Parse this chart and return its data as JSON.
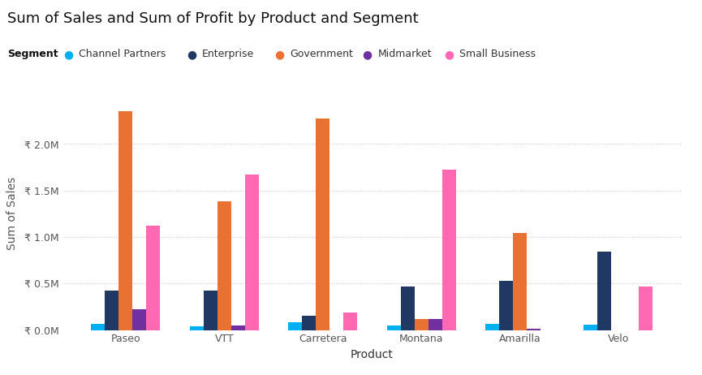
{
  "title": "Sum of Sales and Sum of Profit by Product and Segment",
  "xlabel": "Product",
  "ylabel": "Sum of Sales",
  "legend_title": "Segment",
  "categories": [
    "Paseo",
    "VTT",
    "Carretera",
    "Montana",
    "Amarilla",
    "Velo"
  ],
  "segments": [
    "Channel Partners",
    "Enterprise",
    "Government",
    "Midmarket",
    "Small Business"
  ],
  "colors": {
    "Channel Partners": "#00B0F0",
    "Enterprise": "#1F3864",
    "Government": "#E97132",
    "Midmarket": "#7030A0",
    "Small Business": "#FF69B4"
  },
  "data": {
    "Channel Partners": [
      0.07,
      0.04,
      0.08,
      0.05,
      0.07,
      0.06
    ],
    "Enterprise": [
      0.42,
      0.42,
      0.15,
      0.47,
      0.53,
      0.84
    ],
    "Government": [
      2.35,
      1.38,
      2.27,
      0.12,
      1.04,
      0.0
    ],
    "Midmarket": [
      0.22,
      0.05,
      0.0,
      0.12,
      0.01,
      0.0
    ],
    "Small Business": [
      1.12,
      1.67,
      0.19,
      1.72,
      0.0,
      0.47
    ]
  },
  "ylim": [
    0,
    2.5
  ],
  "yticks": [
    0.0,
    0.5,
    1.0,
    1.5,
    2.0
  ],
  "ytick_labels": [
    "₹ 0.0M",
    "₹ 0.5M",
    "₹ 1.0M",
    "₹ 1.5M",
    "₹ 2.0M"
  ],
  "background_color": "#FFFFFF",
  "grid_color": "#CCCCCC",
  "title_fontsize": 13,
  "axis_label_fontsize": 10,
  "tick_fontsize": 9,
  "legend_fontsize": 9,
  "bar_width": 0.14
}
